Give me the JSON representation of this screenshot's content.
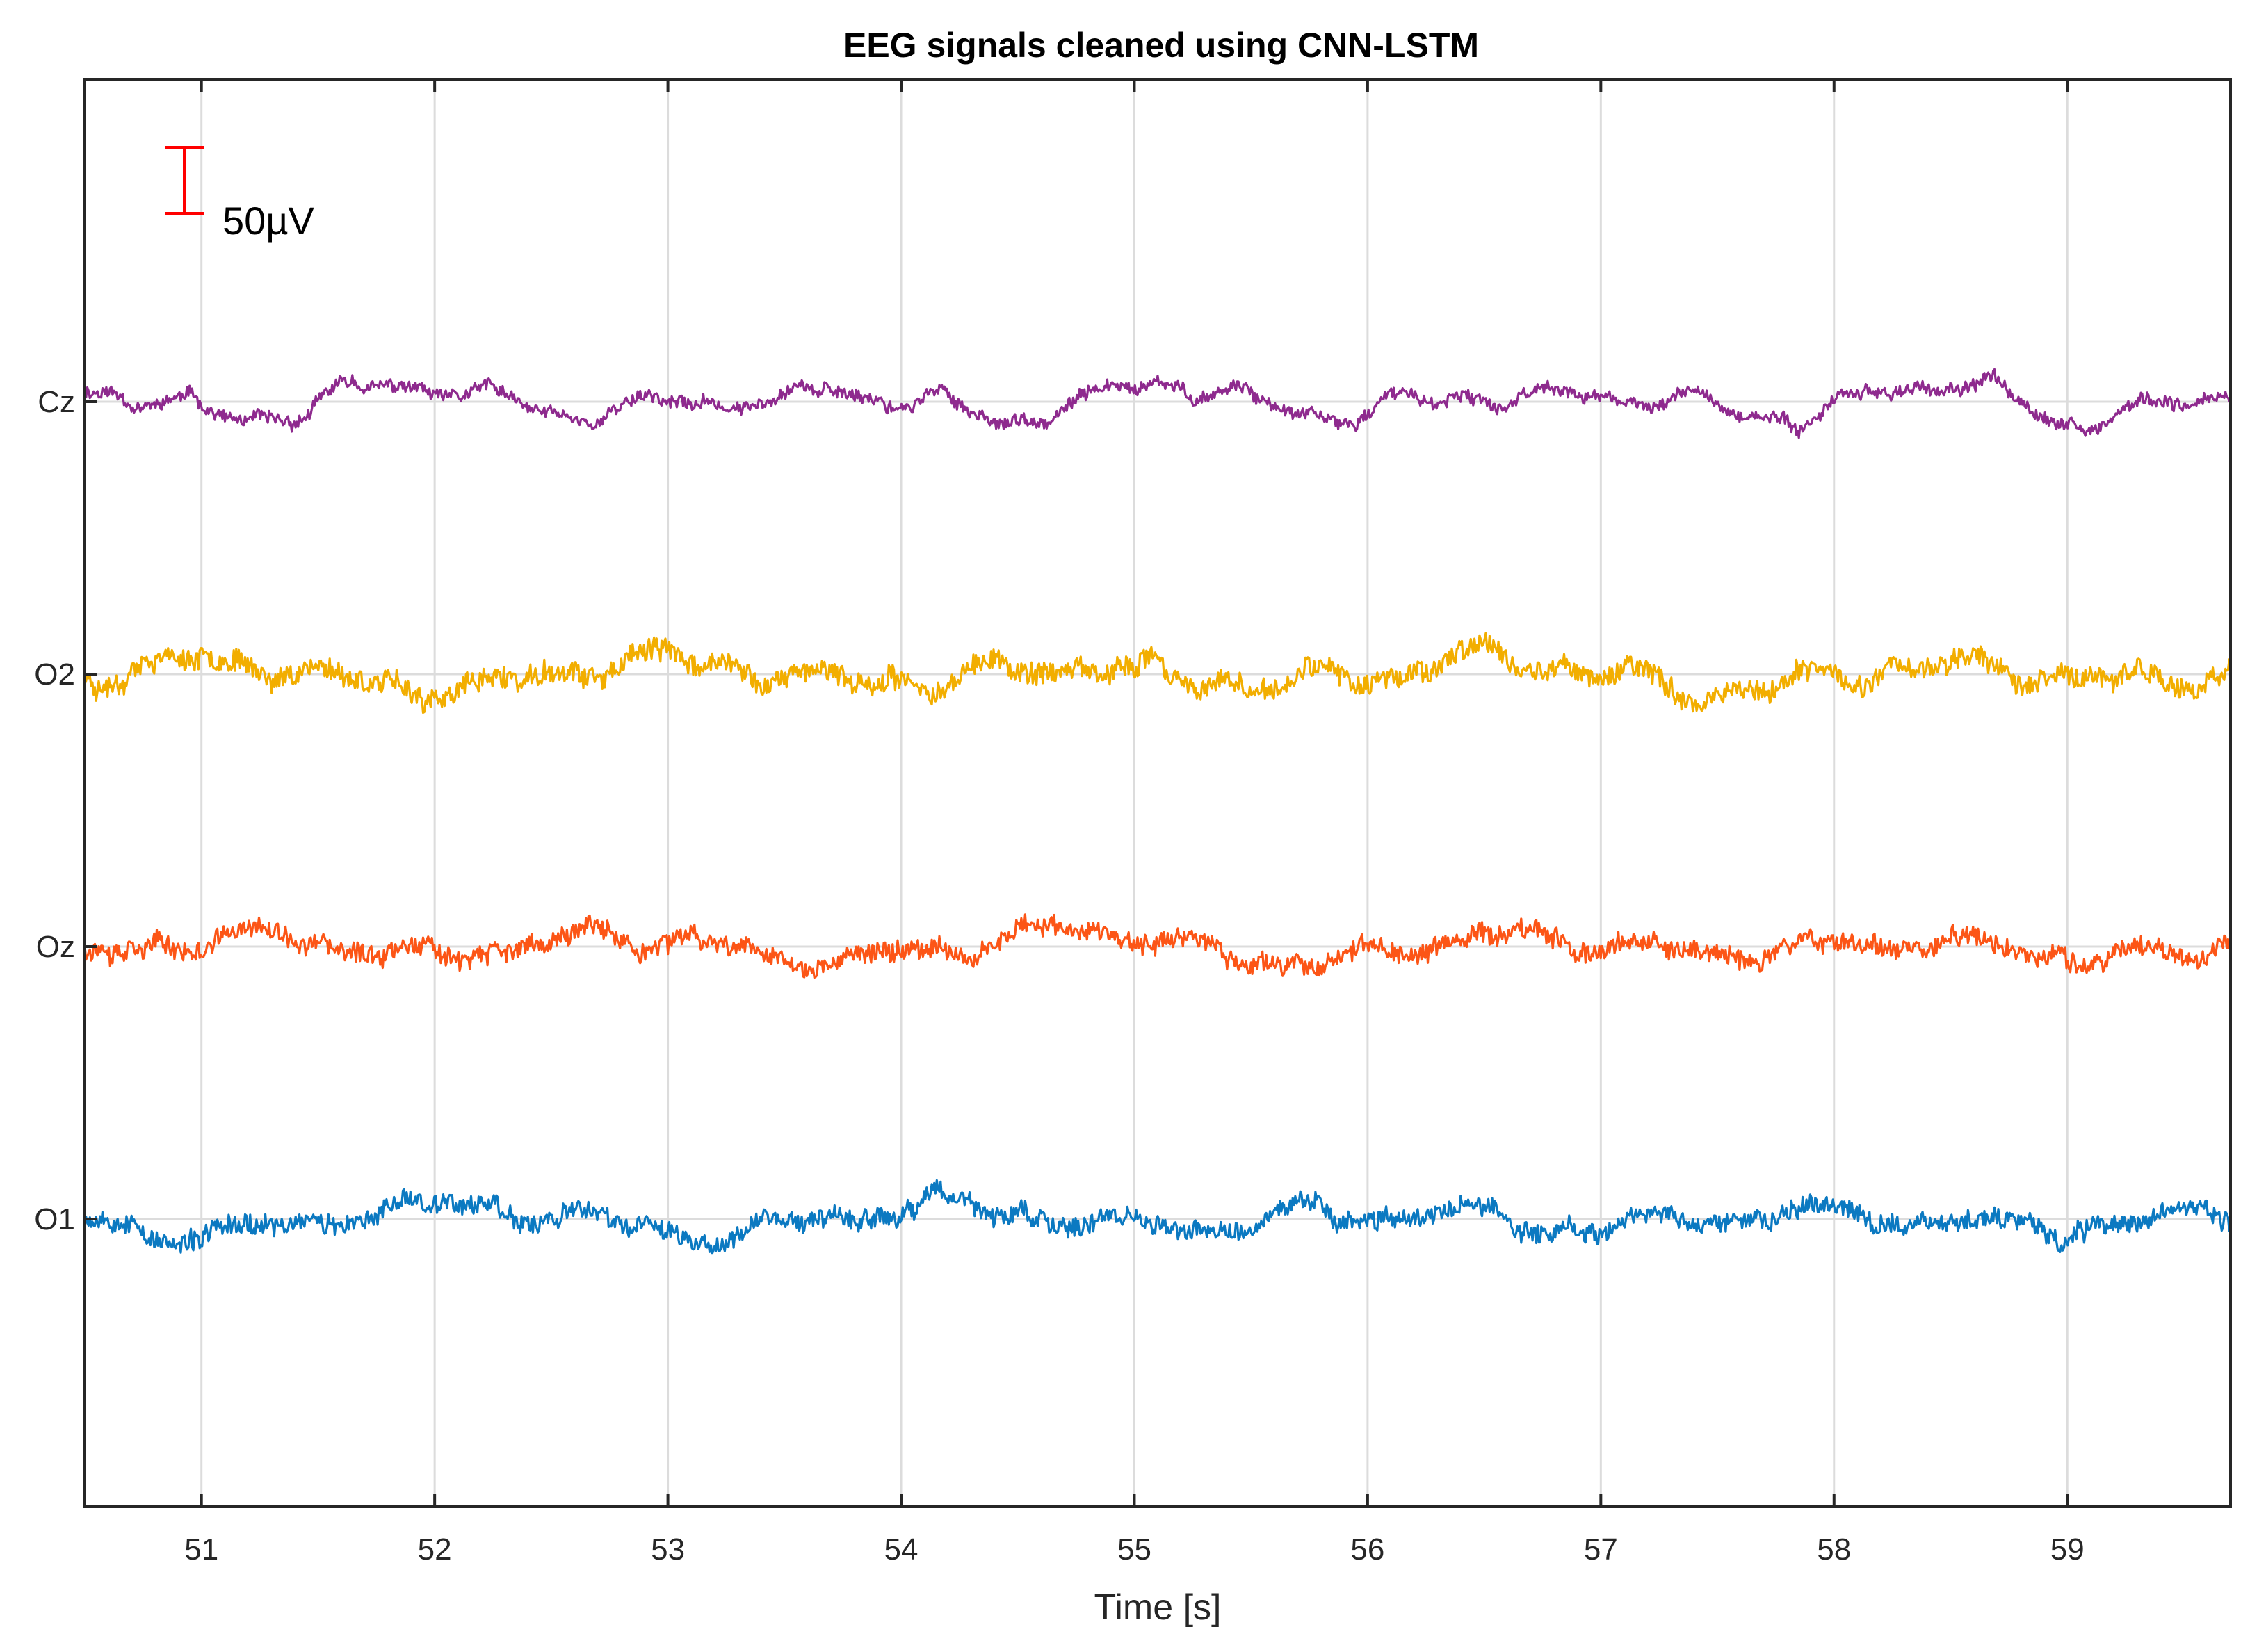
{
  "chart_data": {
    "type": "line",
    "title": "EEG signals cleaned using CNN-LSTM",
    "xlabel": "Time [s]",
    "ylabel": "",
    "xlim": [
      50.5,
      59.7
    ],
    "x_ticks": [
      51,
      52,
      53,
      54,
      55,
      56,
      57,
      58,
      59
    ],
    "grid": true,
    "scale_bar": {
      "label": "50µV",
      "value_uv": 50,
      "color": "#ff0000"
    },
    "series": [
      {
        "name": "Cz",
        "color": "#8e2a8e",
        "amplitude_uv": 12,
        "noise": 0.35,
        "seed": 11,
        "waves": [
          [
            0.62,
            0.75,
            0.2
          ],
          [
            1.55,
            0.55,
            1.3
          ],
          [
            3.1,
            0.3,
            2.1
          ],
          [
            0.9,
            0.4,
            4.0
          ]
        ]
      },
      {
        "name": "O2",
        "color": "#f2ae00",
        "amplitude_uv": 12,
        "noise": 0.65,
        "seed": 23,
        "waves": [
          [
            0.55,
            0.7,
            0.9
          ],
          [
            1.45,
            0.5,
            2.4
          ],
          [
            2.8,
            0.35,
            0.6
          ],
          [
            0.35,
            0.3,
            3.3
          ]
        ]
      },
      {
        "name": "Oz",
        "color": "#fc5516",
        "amplitude_uv": 12,
        "noise": 0.6,
        "seed": 37,
        "waves": [
          [
            0.55,
            0.7,
            1.0
          ],
          [
            1.5,
            0.5,
            2.2
          ],
          [
            2.7,
            0.3,
            0.4
          ],
          [
            0.38,
            0.3,
            3.1
          ]
        ]
      },
      {
        "name": "O1",
        "color": "#0b79c1",
        "amplitude_uv": 12,
        "noise": 0.6,
        "seed": 53,
        "waves": [
          [
            0.5,
            0.7,
            1.5
          ],
          [
            1.35,
            0.5,
            0.3
          ],
          [
            2.6,
            0.35,
            2.8
          ],
          [
            0.42,
            0.3,
            1.9
          ]
        ]
      }
    ]
  }
}
